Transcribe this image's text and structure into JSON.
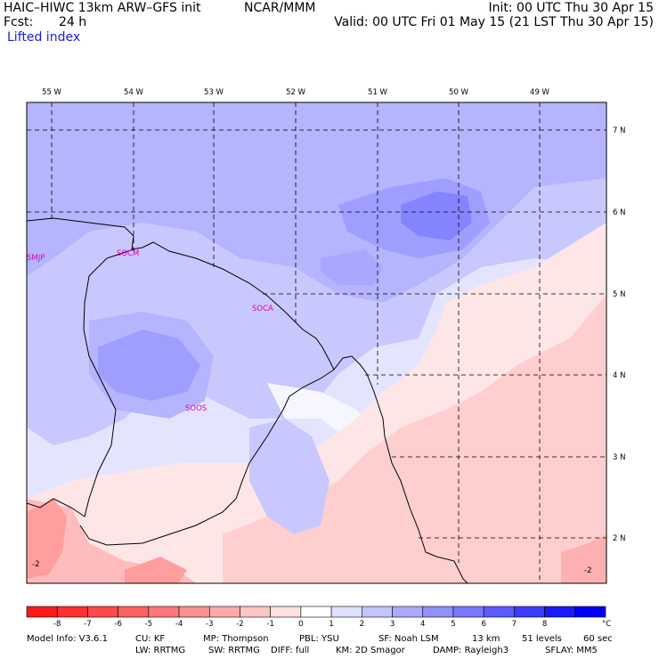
{
  "header": {
    "model": "HAIC–HIWC 13km ARW–GFS init",
    "org": "NCAR/MMM",
    "fcst_label": "Fcst:",
    "fcst_value": "24 h",
    "field": "Lifted index",
    "init": "Init: 00 UTC Thu 30 Apr 15",
    "valid": "Valid: 00 UTC Fri 01 May 15 (21 LST Thu 30 Apr 15)"
  },
  "map": {
    "lon_labels": [
      "55 W",
      "54 W",
      "53 W",
      "52 W",
      "51 W",
      "50 W",
      "49 W"
    ],
    "lat_labels": [
      "7 N",
      "6 N",
      "5 N",
      "4 N",
      "3 N",
      "2 N"
    ],
    "stations": [
      "SMJP",
      "SOCM",
      "SOCA",
      "SOOS"
    ],
    "contour_labels": [
      "-2",
      "-2"
    ],
    "extent": {
      "lon": [
        -55.3,
        -48.1
      ],
      "lat": [
        1.5,
        7.3
      ]
    }
  },
  "colorbar": {
    "unit": "°C",
    "ticks": [
      "-8",
      "-7",
      "-6",
      "-5",
      "-4",
      "-3",
      "-2",
      "-1",
      "0",
      "1",
      "2",
      "3",
      "4",
      "5",
      "6",
      "7",
      "8"
    ],
    "colors": [
      "#ff1a1a",
      "#ff3030",
      "#ff4848",
      "#ff6060",
      "#ff7878",
      "#ff9090",
      "#ffaaaa",
      "#ffc4c4",
      "#ffe0e0",
      "#ffffff",
      "#e0e0ff",
      "#c4c4ff",
      "#aaaaff",
      "#9090ff",
      "#7878ff",
      "#5a5aff",
      "#3c3cff",
      "#1a1aff",
      "#0000ff"
    ]
  },
  "footer": {
    "line1": [
      "Model Info: V3.6.1",
      "CU: KF",
      "MP: Thompson",
      "PBL: YSU",
      "SF: Noah LSM",
      "13 km",
      "51 levels",
      "60 sec"
    ],
    "line2": [
      "LW: RRTMG",
      "SW: RRTMG",
      "DIFF: full",
      "KM: 2D Smagor",
      "DAMP: Rayleigh3",
      "SFLAY: MM5"
    ]
  }
}
